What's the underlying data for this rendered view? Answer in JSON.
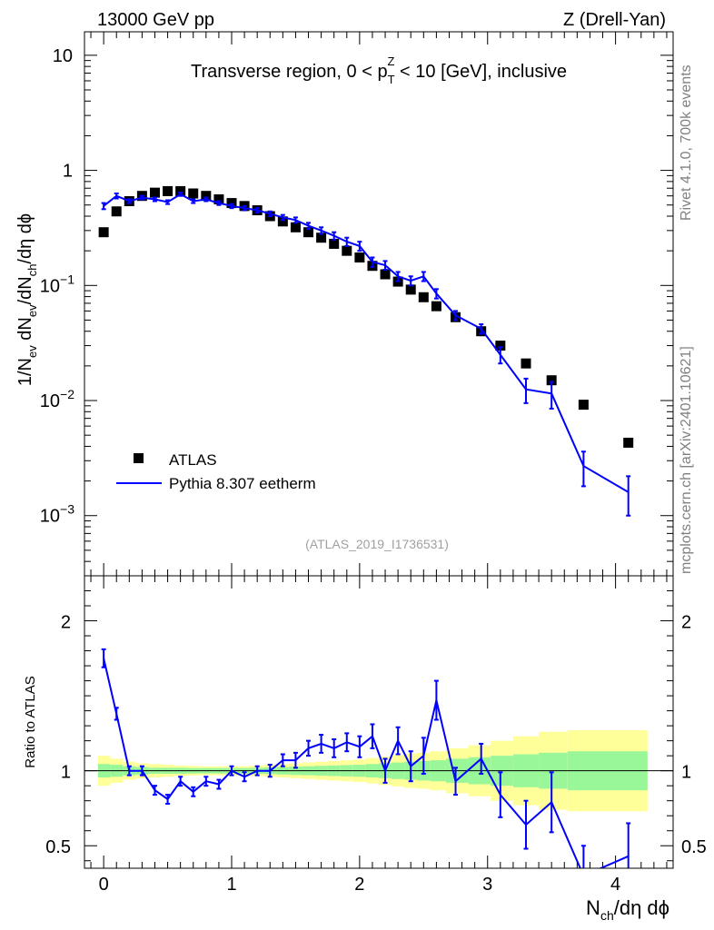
{
  "header": {
    "left": "13000 GeV pp",
    "right": "Z (Drell-Yan)"
  },
  "side_text": {
    "top": "Rivet 4.1.0,  700k events",
    "bottom": "mcplots.cern.ch [arXiv:2401.10621]"
  },
  "chart_data": [
    {
      "type": "scatter",
      "title": "Transverse region, 0 < p_T^Z < 10 [GeV], inclusive",
      "title_parts": {
        "before": "Transverse region, 0 < p",
        "sup": "Z",
        "sub": "T",
        "after": " < 10 [GeV], inclusive"
      },
      "ylabel": "1/N_ev dN_ev/dN_ch/dη dϕ",
      "ylabel_parts": [
        "1/N",
        "ev",
        " dN",
        "ev",
        "/dN",
        "ch",
        "/dη dϕ"
      ],
      "yscale": "log",
      "ylim": [
        0.0003,
        16
      ],
      "xlim": [
        -0.15,
        4.45
      ],
      "ytick_labels": {
        "major": [
          "10",
          "1",
          "10",
          "10",
          "10"
        ],
        "exponents": [
          "",
          "",
          "−1",
          "−2",
          "−3"
        ],
        "values": [
          10,
          1,
          0.1,
          0.01,
          0.001
        ]
      },
      "watermark": "(ATLAS_2019_I1736531)",
      "legend": {
        "position": "bottom-left",
        "entries": [
          "ATLAS",
          "Pythia 8.307 eetherm"
        ]
      },
      "series": [
        {
          "name": "ATLAS",
          "style": "black-square-markers",
          "color": "#000000",
          "x": [
            0.0,
            0.1,
            0.2,
            0.3,
            0.4,
            0.5,
            0.6,
            0.7,
            0.8,
            0.9,
            1.0,
            1.1,
            1.2,
            1.3,
            1.4,
            1.5,
            1.6,
            1.7,
            1.8,
            1.9,
            2.0,
            2.1,
            2.2,
            2.3,
            2.4,
            2.5,
            2.6,
            2.75,
            2.95,
            3.1,
            3.3,
            3.5,
            3.75,
            4.1
          ],
          "values": [
            0.29,
            0.44,
            0.54,
            0.6,
            0.64,
            0.66,
            0.66,
            0.63,
            0.6,
            0.56,
            0.52,
            0.49,
            0.45,
            0.4,
            0.36,
            0.32,
            0.29,
            0.26,
            0.23,
            0.2,
            0.175,
            0.148,
            0.125,
            0.108,
            0.092,
            0.079,
            0.066,
            0.053,
            0.04,
            0.03,
            0.021,
            0.015,
            0.0092,
            0.0043
          ]
        },
        {
          "name": "Pythia 8.307 eetherm",
          "style": "blue-line-with-errorbars",
          "color": "#0000ff",
          "x": [
            0.0,
            0.1,
            0.2,
            0.3,
            0.4,
            0.5,
            0.6,
            0.7,
            0.8,
            0.9,
            1.0,
            1.1,
            1.2,
            1.3,
            1.4,
            1.5,
            1.6,
            1.7,
            1.8,
            1.9,
            2.0,
            2.1,
            2.2,
            2.3,
            2.4,
            2.5,
            2.6,
            2.75,
            2.95,
            3.1,
            3.3,
            3.5,
            3.75,
            4.1
          ],
          "values": [
            0.49,
            0.6,
            0.54,
            0.58,
            0.56,
            0.53,
            0.62,
            0.54,
            0.56,
            0.52,
            0.49,
            0.47,
            0.45,
            0.42,
            0.39,
            0.37,
            0.33,
            0.3,
            0.27,
            0.24,
            0.22,
            0.16,
            0.15,
            0.12,
            0.11,
            0.12,
            0.085,
            0.055,
            0.042,
            0.025,
            0.0125,
            0.0115,
            0.0027,
            0.0016
          ],
          "errors": [
            0.03,
            0.03,
            0.02,
            0.02,
            0.02,
            0.02,
            0.02,
            0.02,
            0.02,
            0.02,
            0.02,
            0.02,
            0.02,
            0.02,
            0.02,
            0.02,
            0.02,
            0.02,
            0.02,
            0.02,
            0.02,
            0.015,
            0.013,
            0.011,
            0.01,
            0.011,
            0.008,
            0.005,
            0.004,
            0.004,
            0.003,
            0.003,
            0.0009,
            0.0006
          ]
        }
      ]
    },
    {
      "type": "scatter",
      "title": "",
      "ylabel": "Ratio to ATLAS",
      "xlabel": "N_ch/dη dϕ",
      "xlabel_parts": [
        "N",
        "ch",
        "/dη dϕ"
      ],
      "ylim": [
        0.35,
        2.3
      ],
      "xlim": [
        -0.15,
        4.45
      ],
      "ytick_labels": [
        "2",
        "1",
        "0.5"
      ],
      "ytick_values": [
        2,
        1,
        0.5
      ],
      "xtick_labels": [
        "0",
        "1",
        "2",
        "3",
        "4"
      ],
      "xtick_values": [
        0,
        1,
        2,
        3,
        4
      ],
      "reference_line": 1,
      "bands": {
        "edges": [
          0.0,
          0.1,
          0.2,
          0.3,
          0.4,
          0.5,
          0.6,
          0.7,
          0.8,
          0.9,
          1.0,
          1.1,
          1.2,
          1.3,
          1.4,
          1.5,
          1.6,
          1.7,
          1.8,
          1.9,
          2.0,
          2.1,
          2.2,
          2.3,
          2.4,
          2.5,
          2.6,
          2.75,
          2.95,
          3.1,
          3.3,
          3.5,
          3.75,
          4.1,
          4.4
        ],
        "green_halfwidth": [
          0.045,
          0.04,
          0.03,
          0.025,
          0.02,
          0.02,
          0.02,
          0.018,
          0.018,
          0.018,
          0.018,
          0.018,
          0.02,
          0.022,
          0.025,
          0.028,
          0.03,
          0.033,
          0.035,
          0.038,
          0.04,
          0.045,
          0.05,
          0.055,
          0.06,
          0.065,
          0.07,
          0.08,
          0.09,
          0.1,
          0.11,
          0.12,
          0.13,
          0.13
        ],
        "yellow_halfwidth": [
          0.1,
          0.08,
          0.06,
          0.05,
          0.045,
          0.04,
          0.035,
          0.032,
          0.03,
          0.03,
          0.03,
          0.03,
          0.035,
          0.04,
          0.045,
          0.05,
          0.055,
          0.06,
          0.065,
          0.07,
          0.075,
          0.085,
          0.095,
          0.105,
          0.115,
          0.12,
          0.13,
          0.15,
          0.17,
          0.2,
          0.23,
          0.26,
          0.27,
          0.27
        ],
        "green_color": "#99f799",
        "yellow_color": "#ffff99"
      },
      "series": [
        {
          "name": "Pythia 8.307 eetherm / ATLAS",
          "color": "#0000ff",
          "x": [
            0.0,
            0.1,
            0.2,
            0.3,
            0.4,
            0.5,
            0.6,
            0.7,
            0.8,
            0.9,
            1.0,
            1.1,
            1.2,
            1.3,
            1.4,
            1.5,
            1.6,
            1.7,
            1.8,
            1.9,
            2.0,
            2.1,
            2.2,
            2.3,
            2.4,
            2.5,
            2.6,
            2.75,
            2.95,
            3.1,
            3.3,
            3.5,
            3.75,
            4.1
          ],
          "values": [
            1.75,
            1.38,
            1.0,
            1.0,
            0.87,
            0.81,
            0.93,
            0.86,
            0.93,
            0.91,
            1.0,
            0.96,
            1.0,
            1.0,
            1.07,
            1.07,
            1.15,
            1.18,
            1.15,
            1.19,
            1.16,
            1.23,
            1.0,
            1.2,
            1.03,
            1.1,
            1.47,
            0.93,
            1.08,
            0.84,
            0.64,
            0.79,
            0.3,
            0.43
          ],
          "errors": [
            0.06,
            0.04,
            0.03,
            0.03,
            0.03,
            0.03,
            0.03,
            0.03,
            0.03,
            0.03,
            0.03,
            0.03,
            0.03,
            0.04,
            0.04,
            0.05,
            0.05,
            0.06,
            0.06,
            0.06,
            0.07,
            0.08,
            0.08,
            0.09,
            0.1,
            0.12,
            0.13,
            0.09,
            0.1,
            0.15,
            0.16,
            0.2,
            0.2,
            0.22
          ]
        }
      ]
    }
  ]
}
